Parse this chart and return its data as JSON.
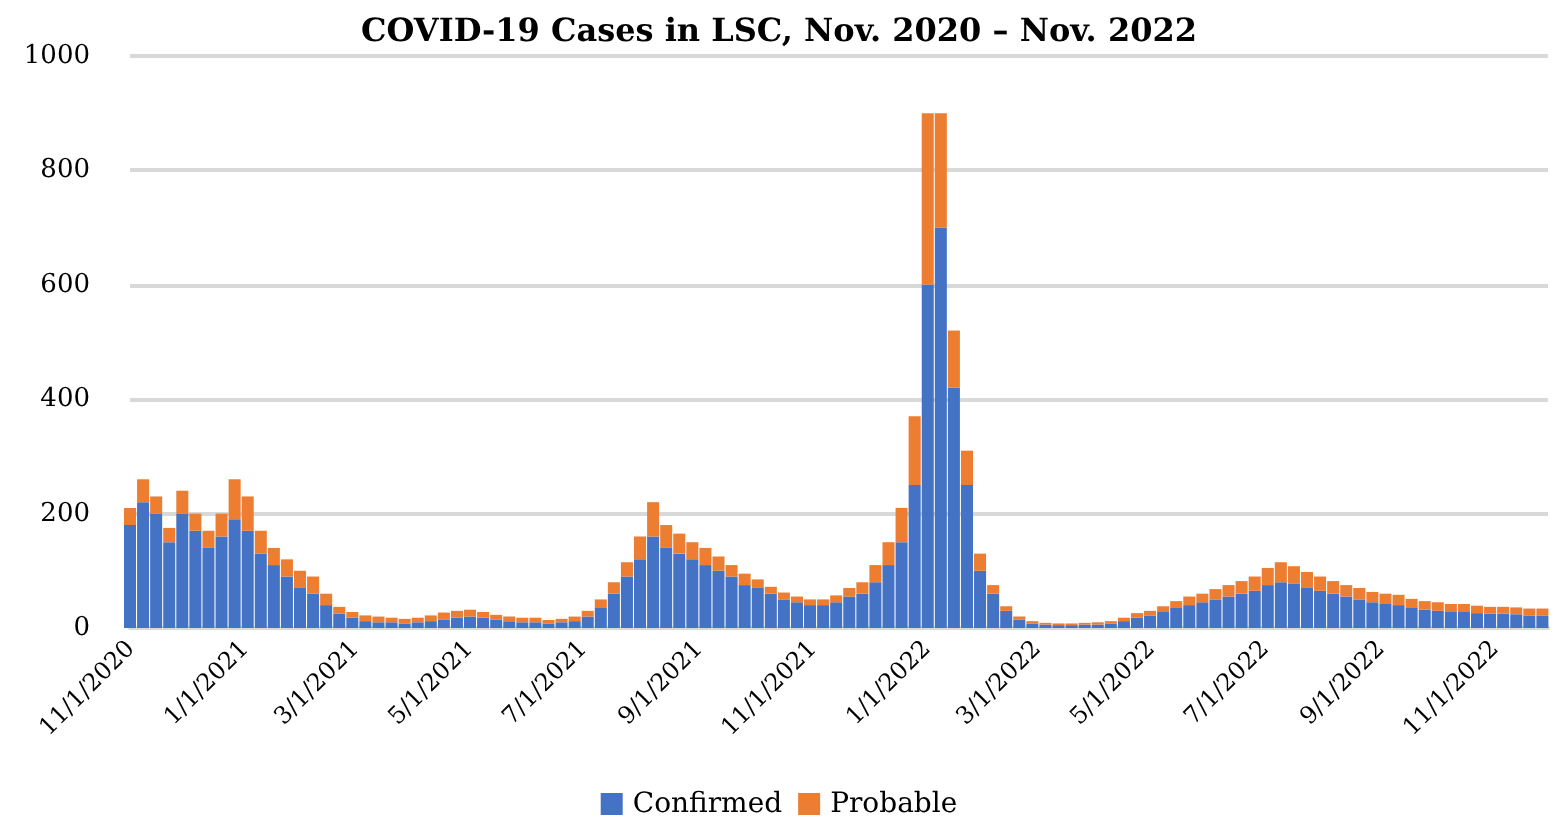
{
  "chart_data": {
    "type": "bar",
    "stacked": true,
    "title": "COVID-19 Cases in LSC, Nov. 2020 – Nov. 2022",
    "x": [
      "2020-11-01",
      "2020-11-08",
      "2020-11-15",
      "2020-11-22",
      "2020-11-29",
      "2020-12-06",
      "2020-12-13",
      "2020-12-20",
      "2020-12-27",
      "2021-01-03",
      "2021-01-10",
      "2021-01-17",
      "2021-01-24",
      "2021-01-31",
      "2021-02-07",
      "2021-02-14",
      "2021-02-21",
      "2021-02-28",
      "2021-03-07",
      "2021-03-14",
      "2021-03-21",
      "2021-03-28",
      "2021-04-04",
      "2021-04-11",
      "2021-04-18",
      "2021-04-25",
      "2021-05-02",
      "2021-05-09",
      "2021-05-16",
      "2021-05-23",
      "2021-05-30",
      "2021-06-06",
      "2021-06-13",
      "2021-06-20",
      "2021-06-27",
      "2021-07-04",
      "2021-07-11",
      "2021-07-18",
      "2021-07-25",
      "2021-08-01",
      "2021-08-08",
      "2021-08-15",
      "2021-08-22",
      "2021-08-29",
      "2021-09-05",
      "2021-09-12",
      "2021-09-19",
      "2021-09-26",
      "2021-10-03",
      "2021-10-10",
      "2021-10-17",
      "2021-10-24",
      "2021-10-31",
      "2021-11-07",
      "2021-11-14",
      "2021-11-21",
      "2021-11-28",
      "2021-12-05",
      "2021-12-12",
      "2021-12-19",
      "2021-12-26",
      "2022-01-02",
      "2022-01-09",
      "2022-01-16",
      "2022-01-23",
      "2022-01-30",
      "2022-02-06",
      "2022-02-13",
      "2022-02-20",
      "2022-02-27",
      "2022-03-06",
      "2022-03-13",
      "2022-03-20",
      "2022-03-27",
      "2022-04-03",
      "2022-04-10",
      "2022-04-17",
      "2022-04-24",
      "2022-05-01",
      "2022-05-08",
      "2022-05-15",
      "2022-05-22",
      "2022-05-29",
      "2022-06-05",
      "2022-06-12",
      "2022-06-19",
      "2022-06-26",
      "2022-07-03",
      "2022-07-10",
      "2022-07-17",
      "2022-07-24",
      "2022-07-31",
      "2022-08-07",
      "2022-08-14",
      "2022-08-21",
      "2022-08-28",
      "2022-09-04",
      "2022-09-11",
      "2022-09-18",
      "2022-09-25",
      "2022-10-02",
      "2022-10-09",
      "2022-10-16",
      "2022-10-23",
      "2022-10-30",
      "2022-11-06",
      "2022-11-13",
      "2022-11-20",
      "2022-11-27"
    ],
    "series": [
      {
        "name": "Confirmed",
        "color": "#4472c4",
        "values": [
          180,
          220,
          200,
          150,
          200,
          170,
          140,
          160,
          190,
          170,
          130,
          110,
          90,
          70,
          60,
          40,
          25,
          18,
          12,
          10,
          10,
          8,
          10,
          12,
          15,
          18,
          20,
          18,
          15,
          12,
          10,
          10,
          8,
          10,
          12,
          20,
          35,
          60,
          90,
          120,
          160,
          140,
          130,
          120,
          110,
          100,
          90,
          75,
          70,
          60,
          50,
          45,
          40,
          40,
          45,
          55,
          60,
          80,
          110,
          150,
          250,
          600,
          700,
          420,
          250,
          100,
          60,
          30,
          15,
          8,
          6,
          5,
          5,
          6,
          6,
          8,
          12,
          18,
          22,
          28,
          35,
          40,
          45,
          50,
          55,
          60,
          65,
          75,
          80,
          78,
          70,
          65,
          60,
          55,
          50,
          45,
          42,
          40,
          35,
          32,
          30,
          28,
          28,
          26,
          25,
          25,
          24,
          22,
          22
        ]
      },
      {
        "name": "Probable",
        "color": "#ed7d31",
        "values": [
          30,
          40,
          30,
          25,
          40,
          30,
          30,
          40,
          70,
          60,
          40,
          30,
          30,
          30,
          30,
          20,
          12,
          10,
          10,
          10,
          8,
          8,
          8,
          10,
          12,
          12,
          12,
          10,
          8,
          8,
          8,
          8,
          6,
          6,
          8,
          10,
          15,
          20,
          25,
          40,
          60,
          40,
          35,
          30,
          30,
          25,
          20,
          20,
          15,
          12,
          12,
          10,
          10,
          10,
          12,
          15,
          20,
          30,
          40,
          60,
          120,
          300,
          200,
          100,
          60,
          30,
          15,
          8,
          5,
          4,
          3,
          3,
          3,
          3,
          4,
          4,
          6,
          8,
          8,
          10,
          12,
          15,
          15,
          18,
          20,
          22,
          25,
          30,
          35,
          30,
          28,
          25,
          22,
          20,
          20,
          18,
          18,
          18,
          16,
          15,
          15,
          14,
          14,
          13,
          12,
          12,
          12,
          12,
          12
        ]
      }
    ],
    "xlim": [
      "2020-11-01",
      "2022-11-30"
    ],
    "xticks": [
      {
        "value": "2020-11-01",
        "label": "11/1/2020"
      },
      {
        "value": "2021-01-01",
        "label": "1/1/2021"
      },
      {
        "value": "2021-03-01",
        "label": "3/1/2021"
      },
      {
        "value": "2021-05-01",
        "label": "5/1/2021"
      },
      {
        "value": "2021-07-01",
        "label": "7/1/2021"
      },
      {
        "value": "2021-09-01",
        "label": "9/1/2021"
      },
      {
        "value": "2021-11-01",
        "label": "11/1/2021"
      },
      {
        "value": "2022-01-01",
        "label": "1/1/2022"
      },
      {
        "value": "2022-03-01",
        "label": "3/1/2022"
      },
      {
        "value": "2022-05-01",
        "label": "5/1/2022"
      },
      {
        "value": "2022-07-01",
        "label": "7/1/2022"
      },
      {
        "value": "2022-09-01",
        "label": "9/1/2022"
      },
      {
        "value": "2022-11-01",
        "label": "11/1/2022"
      }
    ],
    "ylim": [
      0,
      1000
    ],
    "yticks": [
      0,
      200,
      400,
      600,
      800,
      1000
    ],
    "grid": "y",
    "legend": "bottom"
  }
}
